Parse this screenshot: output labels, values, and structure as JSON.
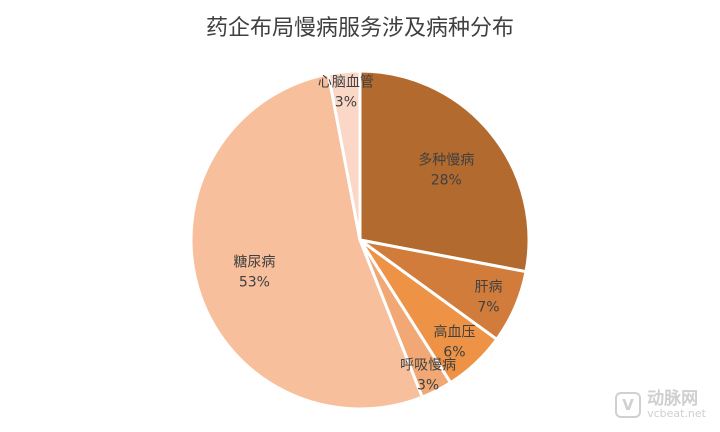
{
  "chart_data": {
    "type": "pie",
    "title": "药企布局慢病服务涉及病种分布",
    "start_angle_deg": 0,
    "direction": "clockwise",
    "slices": [
      {
        "label": "多种慢病",
        "value": 28,
        "pct_label": "28%",
        "color": "#b36a2e"
      },
      {
        "label": "肝病",
        "value": 7,
        "pct_label": "7%",
        "color": "#d27c3c"
      },
      {
        "label": "高血压",
        "value": 6,
        "pct_label": "6%",
        "color": "#ee9245"
      },
      {
        "label": "呼吸慢病",
        "value": 3,
        "pct_label": "3%",
        "color": "#f1a874"
      },
      {
        "label": "糖尿病",
        "value": 53,
        "pct_label": "53%",
        "color": "#f8bf9c"
      },
      {
        "label": "心脑血管",
        "value": 3,
        "pct_label": "3%",
        "color": "#fad7c6"
      }
    ]
  },
  "watermark": {
    "logo": "V",
    "name": "动脉网",
    "url": "vcbeat.net"
  }
}
